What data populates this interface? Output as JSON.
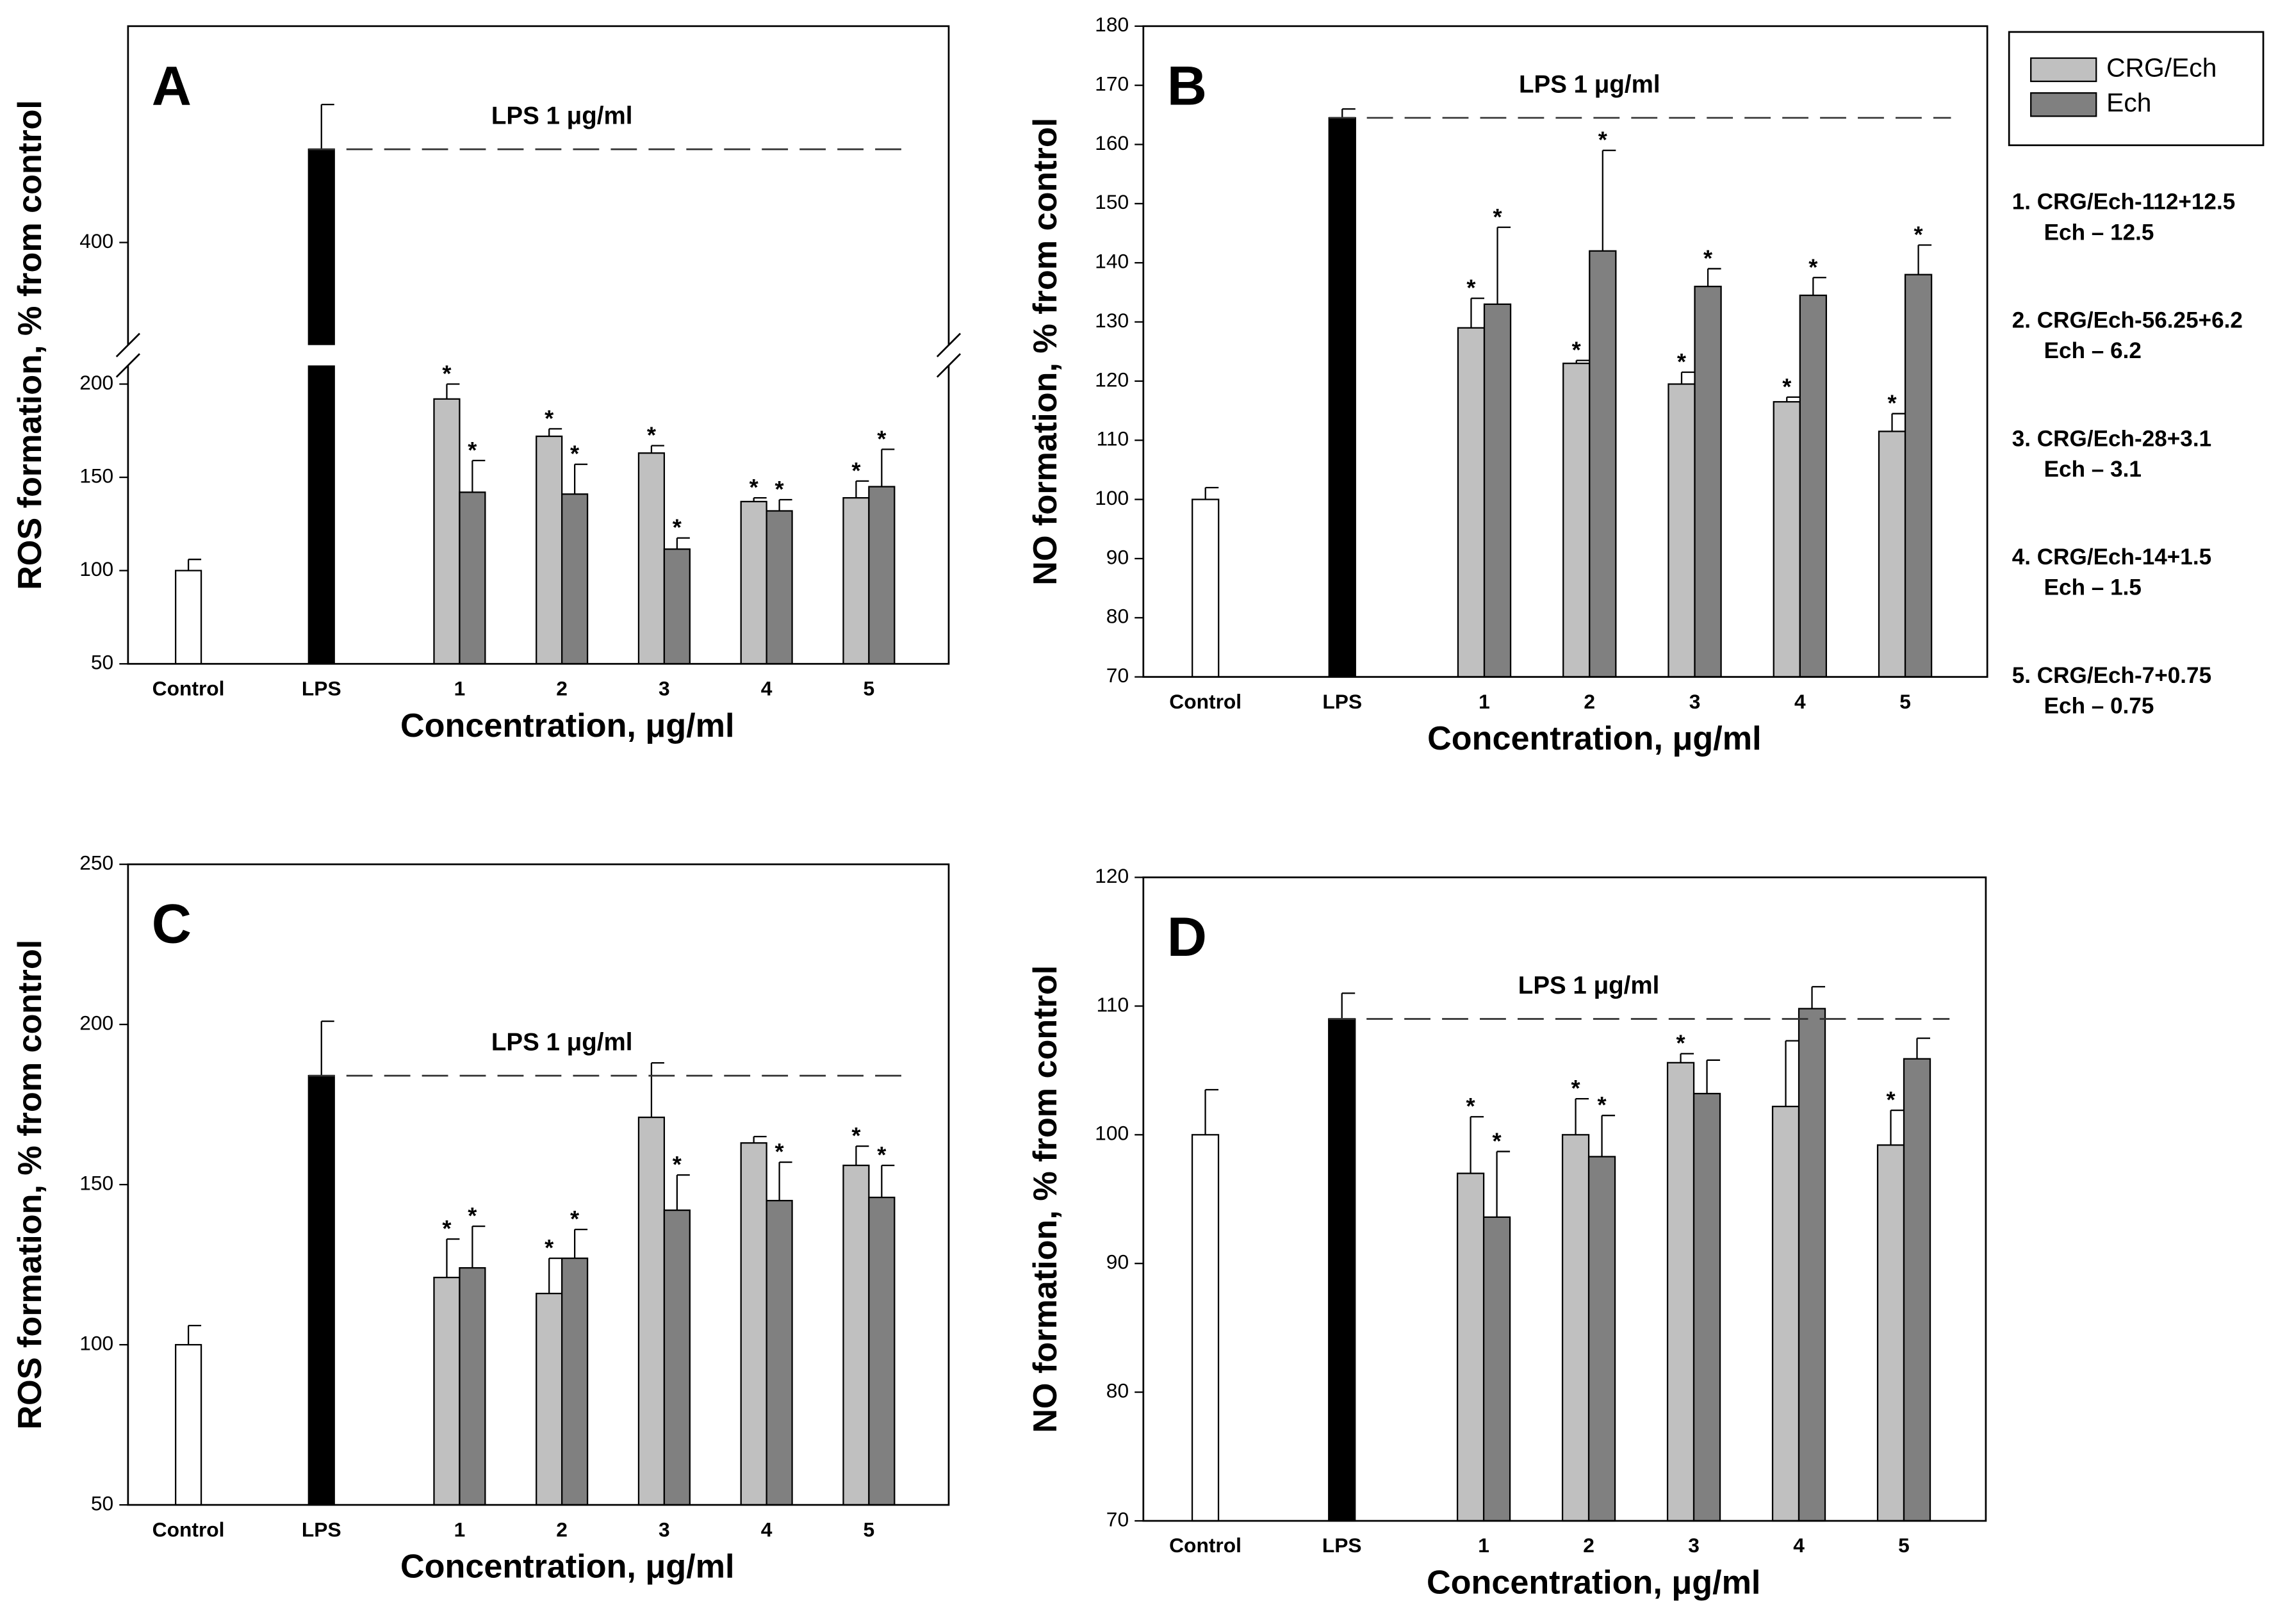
{
  "chart_data": [
    {
      "type": "bar",
      "panel": "A",
      "ylabel": "ROS formation, % from control",
      "xlabel": "Concentration, μg/ml",
      "annotation": "LPS 1 μg/ml",
      "significance_marker": "*",
      "categories": [
        "Control",
        "LPS",
        "1",
        "2",
        "3",
        "4",
        "5"
      ],
      "ylim": [
        50,
        516
      ],
      "axis_break": [
        210,
        345
      ],
      "yticks": [
        50,
        100,
        150,
        200,
        400
      ],
      "reference_line": 450,
      "series": [
        {
          "color": "#ffffff",
          "values": [
            100,
            null,
            null,
            null,
            null,
            null,
            null
          ],
          "errors": [
            6,
            null,
            null,
            null,
            null,
            null,
            null
          ],
          "significant": [
            false,
            false,
            false,
            false,
            false,
            false,
            false
          ]
        },
        {
          "color": "#000000",
          "values": [
            null,
            450,
            null,
            null,
            null,
            null,
            null
          ],
          "errors": [
            null,
            24,
            null,
            null,
            null,
            null,
            null
          ],
          "significant": [
            false,
            false,
            false,
            false,
            false,
            false,
            false
          ]
        },
        {
          "name": "CRG/Ech",
          "color": "#c0c0c0",
          "values": [
            null,
            null,
            192,
            172,
            163,
            137,
            139
          ],
          "errors": [
            null,
            null,
            8,
            4,
            4,
            2,
            9
          ],
          "significant": [
            false,
            false,
            true,
            true,
            true,
            true,
            true
          ]
        },
        {
          "name": "Ech",
          "color": "#808080",
          "values": [
            null,
            null,
            142,
            141,
            111.5,
            132,
            145
          ],
          "errors": [
            null,
            null,
            17,
            16,
            6,
            6,
            20
          ],
          "significant": [
            false,
            false,
            true,
            true,
            true,
            true,
            true
          ]
        }
      ]
    },
    {
      "type": "bar",
      "panel": "B",
      "ylabel": "NO formation, % from control",
      "xlabel": "Concentration, μg/ml",
      "annotation": "LPS 1 μg/ml",
      "significance_marker": "*",
      "categories": [
        "Control",
        "LPS",
        "1",
        "2",
        "3",
        "4",
        "5"
      ],
      "ylim": [
        70,
        180
      ],
      "yticks": [
        70,
        80,
        90,
        100,
        110,
        120,
        130,
        140,
        150,
        160,
        170,
        180
      ],
      "reference_line": 164.5,
      "legend": "outside-right",
      "series": [
        {
          "color": "#ffffff",
          "values": [
            100,
            null,
            null,
            null,
            null,
            null,
            null
          ],
          "errors": [
            2,
            null,
            null,
            null,
            null,
            null,
            null
          ],
          "significant": [
            false,
            false,
            false,
            false,
            false,
            false,
            false
          ]
        },
        {
          "color": "#000000",
          "values": [
            null,
            164.5,
            null,
            null,
            null,
            null,
            null
          ],
          "errors": [
            null,
            1.5,
            null,
            null,
            null,
            null,
            null
          ],
          "significant": [
            false,
            false,
            false,
            false,
            false,
            false,
            false
          ]
        },
        {
          "name": "CRG/Ech",
          "color": "#c0c0c0",
          "values": [
            null,
            null,
            129,
            123,
            119.5,
            116.5,
            111.5
          ],
          "errors": [
            null,
            null,
            5,
            0.5,
            2,
            0.8,
            3
          ],
          "significant": [
            false,
            false,
            true,
            true,
            true,
            true,
            true
          ]
        },
        {
          "name": "Ech",
          "color": "#808080",
          "values": [
            null,
            null,
            133,
            142,
            136,
            134.5,
            138
          ],
          "errors": [
            null,
            null,
            13,
            17,
            3,
            3,
            5
          ],
          "significant": [
            false,
            false,
            true,
            true,
            true,
            true,
            true
          ]
        }
      ]
    },
    {
      "type": "bar",
      "panel": "C",
      "ylabel": "ROS formation, % from control",
      "xlabel": "Concentration, μg/ml",
      "annotation": "LPS 1 μg/ml",
      "significance_marker": "*",
      "categories": [
        "Control",
        "LPS",
        "1",
        "2",
        "3",
        "4",
        "5"
      ],
      "ylim": [
        50,
        250
      ],
      "yticks": [
        50,
        100,
        150,
        200,
        250
      ],
      "reference_line": 184,
      "series": [
        {
          "color": "#ffffff",
          "values": [
            100,
            null,
            null,
            null,
            null,
            null,
            null
          ],
          "errors": [
            6,
            null,
            null,
            null,
            null,
            null,
            null
          ],
          "significant": [
            false,
            false,
            false,
            false,
            false,
            false,
            false
          ]
        },
        {
          "color": "#000000",
          "values": [
            null,
            184,
            null,
            null,
            null,
            null,
            null
          ],
          "errors": [
            null,
            17,
            null,
            null,
            null,
            null,
            null
          ],
          "significant": [
            false,
            false,
            false,
            false,
            false,
            false,
            false
          ]
        },
        {
          "name": "CRG/Ech",
          "color": "#c0c0c0",
          "values": [
            null,
            null,
            121,
            116,
            171,
            163,
            156
          ],
          "errors": [
            null,
            null,
            12,
            11,
            17,
            2,
            6
          ],
          "significant": [
            false,
            false,
            true,
            true,
            false,
            false,
            true
          ]
        },
        {
          "name": "Ech",
          "color": "#808080",
          "values": [
            null,
            null,
            124,
            127,
            142,
            145,
            146
          ],
          "errors": [
            null,
            null,
            13,
            9,
            11,
            12,
            10
          ],
          "significant": [
            false,
            false,
            true,
            true,
            true,
            true,
            true
          ]
        }
      ]
    },
    {
      "type": "bar",
      "panel": "D",
      "ylabel": "NO formation, % from control",
      "xlabel": "Concentration, μg/ml",
      "annotation": "LPS 1 μg/ml",
      "significance_marker": "*",
      "categories": [
        "Control",
        "LPS",
        "1",
        "2",
        "3",
        "4",
        "5"
      ],
      "ylim": [
        70,
        120
      ],
      "yticks": [
        70,
        80,
        90,
        100,
        110,
        120
      ],
      "reference_line": 109,
      "series": [
        {
          "color": "#ffffff",
          "values": [
            100,
            null,
            null,
            null,
            null,
            null,
            null
          ],
          "errors": [
            3.5,
            null,
            null,
            null,
            null,
            null,
            null
          ],
          "significant": [
            false,
            false,
            false,
            false,
            false,
            false,
            false
          ]
        },
        {
          "color": "#000000",
          "values": [
            null,
            109,
            null,
            null,
            null,
            null,
            null
          ],
          "errors": [
            null,
            2,
            null,
            null,
            null,
            null,
            null
          ],
          "significant": [
            false,
            false,
            false,
            false,
            false,
            false,
            false
          ]
        },
        {
          "name": "CRG/Ech",
          "color": "#c0c0c0",
          "values": [
            null,
            null,
            97,
            100,
            105.6,
            102.2,
            99.2
          ],
          "errors": [
            null,
            null,
            4.4,
            2.8,
            0.7,
            5.1,
            2.7
          ],
          "significant": [
            false,
            false,
            true,
            true,
            true,
            false,
            true
          ]
        },
        {
          "name": "Ech",
          "color": "#808080",
          "values": [
            null,
            null,
            93.6,
            98.3,
            103.2,
            109.8,
            105.9
          ],
          "errors": [
            null,
            null,
            5.1,
            3.2,
            2.6,
            1.7,
            1.6
          ],
          "significant": [
            false,
            false,
            true,
            true,
            false,
            false,
            false
          ]
        }
      ]
    }
  ],
  "notes": [
    [
      "1. CRG/Ech-112+12.5",
      "Ech – 12.5"
    ],
    [
      "2. CRG/Ech-56.25+6.2",
      "Ech – 6.2"
    ],
    [
      "3. CRG/Ech-28+3.1",
      "Ech – 3.1"
    ],
    [
      "4. CRG/Ech-14+1.5",
      "Ech – 1.5"
    ],
    [
      "5. CRG/Ech-7+0.75",
      "Ech – 0.75"
    ]
  ]
}
